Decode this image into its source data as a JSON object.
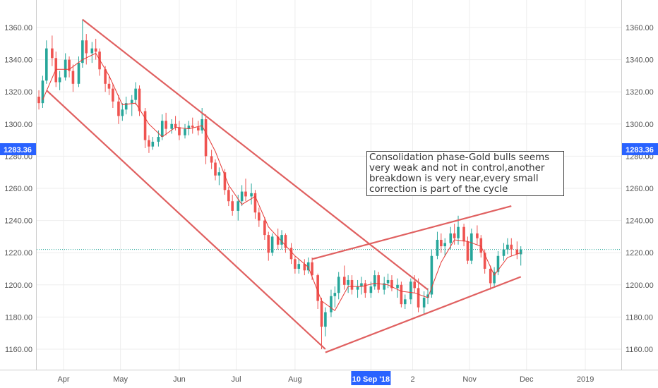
{
  "chart_data": {
    "type": "candlestick",
    "title": "",
    "xlabel": "",
    "ylabel": "",
    "ylim": [
      1150,
      1372
    ],
    "y_ticks": [
      "1160.00",
      "1180.00",
      "1200.00",
      "1220.00",
      "1240.00",
      "1260.00",
      "1280.00",
      "1300.00",
      "1320.00",
      "1340.00",
      "1360.00"
    ],
    "x_ticks": [
      "Apr",
      "May",
      "Jun",
      "Jul",
      "Aug",
      "10 Sep '18",
      "2",
      "Nov",
      "Dec",
      "2019"
    ],
    "highlighted_x_label": "10 Sep '18",
    "current_price_label": "1283.36",
    "dotted_level": 1222,
    "annotation": {
      "lines": [
        "Consolidation phase-Gold bulls seems",
        "very weak and not in control,another",
        "breakdown is very near,every small",
        "correction is part of the cycle"
      ]
    },
    "candle_series": [
      {
        "x": "2018-03-19",
        "open": 1317,
        "high": 1321,
        "low": 1309,
        "close": 1313
      },
      {
        "x": "2018-03-21",
        "open": 1313,
        "high": 1330,
        "low": 1310,
        "close": 1327
      },
      {
        "x": "2018-03-23",
        "open": 1327,
        "high": 1352,
        "low": 1325,
        "close": 1347
      },
      {
        "x": "2018-03-26",
        "open": 1347,
        "high": 1355,
        "low": 1336,
        "close": 1341
      },
      {
        "x": "2018-03-28",
        "open": 1341,
        "high": 1345,
        "low": 1323,
        "close": 1326
      },
      {
        "x": "2018-03-30",
        "open": 1326,
        "high": 1333,
        "low": 1321,
        "close": 1329
      },
      {
        "x": "2018-04-02",
        "open": 1329,
        "high": 1344,
        "low": 1327,
        "close": 1340
      },
      {
        "x": "2018-04-04",
        "open": 1340,
        "high": 1342,
        "low": 1329,
        "close": 1333
      },
      {
        "x": "2018-04-06",
        "open": 1333,
        "high": 1337,
        "low": 1320,
        "close": 1325
      },
      {
        "x": "2018-04-09",
        "open": 1325,
        "high": 1342,
        "low": 1323,
        "close": 1338
      },
      {
        "x": "2018-04-11",
        "open": 1338,
        "high": 1365,
        "low": 1335,
        "close": 1352
      },
      {
        "x": "2018-04-13",
        "open": 1352,
        "high": 1356,
        "low": 1337,
        "close": 1344
      },
      {
        "x": "2018-04-16",
        "open": 1344,
        "high": 1351,
        "low": 1338,
        "close": 1347
      },
      {
        "x": "2018-04-18",
        "open": 1347,
        "high": 1353,
        "low": 1340,
        "close": 1345
      },
      {
        "x": "2018-04-20",
        "open": 1345,
        "high": 1347,
        "low": 1330,
        "close": 1334
      },
      {
        "x": "2018-04-23",
        "open": 1334,
        "high": 1336,
        "low": 1320,
        "close": 1325
      },
      {
        "x": "2018-04-25",
        "open": 1325,
        "high": 1330,
        "low": 1318,
        "close": 1322
      },
      {
        "x": "2018-04-27",
        "open": 1322,
        "high": 1325,
        "low": 1310,
        "close": 1314
      },
      {
        "x": "2018-04-30",
        "open": 1314,
        "high": 1318,
        "low": 1300,
        "close": 1305
      },
      {
        "x": "2018-05-02",
        "open": 1305,
        "high": 1313,
        "low": 1302,
        "close": 1309
      },
      {
        "x": "2018-05-04",
        "open": 1309,
        "high": 1317,
        "low": 1306,
        "close": 1313
      },
      {
        "x": "2018-05-07",
        "open": 1313,
        "high": 1318,
        "low": 1305,
        "close": 1315
      },
      {
        "x": "2018-05-09",
        "open": 1315,
        "high": 1326,
        "low": 1312,
        "close": 1322
      },
      {
        "x": "2018-05-11",
        "open": 1322,
        "high": 1324,
        "low": 1305,
        "close": 1308
      },
      {
        "x": "2018-05-14",
        "open": 1308,
        "high": 1310,
        "low": 1285,
        "close": 1290
      },
      {
        "x": "2018-05-16",
        "open": 1290,
        "high": 1293,
        "low": 1282,
        "close": 1286
      },
      {
        "x": "2018-05-18",
        "open": 1286,
        "high": 1292,
        "low": 1284,
        "close": 1289
      },
      {
        "x": "2018-05-21",
        "open": 1289,
        "high": 1296,
        "low": 1286,
        "close": 1292
      },
      {
        "x": "2018-05-23",
        "open": 1292,
        "high": 1306,
        "low": 1290,
        "close": 1302
      },
      {
        "x": "2018-05-25",
        "open": 1302,
        "high": 1307,
        "low": 1293,
        "close": 1297
      },
      {
        "x": "2018-05-28",
        "open": 1297,
        "high": 1303,
        "low": 1294,
        "close": 1300
      },
      {
        "x": "2018-05-30",
        "open": 1300,
        "high": 1305,
        "low": 1296,
        "close": 1298
      },
      {
        "x": "2018-06-01",
        "open": 1298,
        "high": 1302,
        "low": 1290,
        "close": 1293
      },
      {
        "x": "2018-06-04",
        "open": 1293,
        "high": 1300,
        "low": 1291,
        "close": 1297
      },
      {
        "x": "2018-06-06",
        "open": 1297,
        "high": 1302,
        "low": 1293,
        "close": 1299
      },
      {
        "x": "2018-06-08",
        "open": 1299,
        "high": 1304,
        "low": 1294,
        "close": 1298
      },
      {
        "x": "2018-06-11",
        "open": 1298,
        "high": 1302,
        "low": 1293,
        "close": 1296
      },
      {
        "x": "2018-06-13",
        "open": 1296,
        "high": 1310,
        "low": 1294,
        "close": 1303
      },
      {
        "x": "2018-06-15",
        "open": 1303,
        "high": 1306,
        "low": 1275,
        "close": 1280
      },
      {
        "x": "2018-06-18",
        "open": 1280,
        "high": 1284,
        "low": 1272,
        "close": 1276
      },
      {
        "x": "2018-06-20",
        "open": 1276,
        "high": 1278,
        "low": 1265,
        "close": 1268
      },
      {
        "x": "2018-06-22",
        "open": 1268,
        "high": 1273,
        "low": 1262,
        "close": 1270
      },
      {
        "x": "2018-06-25",
        "open": 1270,
        "high": 1272,
        "low": 1256,
        "close": 1259
      },
      {
        "x": "2018-06-27",
        "open": 1259,
        "high": 1261,
        "low": 1249,
        "close": 1252
      },
      {
        "x": "2018-06-29",
        "open": 1252,
        "high": 1256,
        "low": 1243,
        "close": 1246
      },
      {
        "x": "2018-07-02",
        "open": 1246,
        "high": 1256,
        "low": 1240,
        "close": 1252
      },
      {
        "x": "2018-07-04",
        "open": 1252,
        "high": 1262,
        "low": 1249,
        "close": 1258
      },
      {
        "x": "2018-07-06",
        "open": 1258,
        "high": 1266,
        "low": 1252,
        "close": 1255
      },
      {
        "x": "2018-07-09",
        "open": 1255,
        "high": 1263,
        "low": 1250,
        "close": 1257
      },
      {
        "x": "2018-07-11",
        "open": 1257,
        "high": 1259,
        "low": 1241,
        "close": 1245
      },
      {
        "x": "2018-07-13",
        "open": 1245,
        "high": 1248,
        "low": 1236,
        "close": 1240
      },
      {
        "x": "2018-07-16",
        "open": 1240,
        "high": 1242,
        "low": 1228,
        "close": 1231
      },
      {
        "x": "2018-07-18",
        "open": 1231,
        "high": 1233,
        "low": 1215,
        "close": 1220
      },
      {
        "x": "2018-07-20",
        "open": 1220,
        "high": 1232,
        "low": 1218,
        "close": 1230
      },
      {
        "x": "2018-07-23",
        "open": 1230,
        "high": 1235,
        "low": 1222,
        "close": 1225
      },
      {
        "x": "2018-07-25",
        "open": 1225,
        "high": 1234,
        "low": 1222,
        "close": 1231
      },
      {
        "x": "2018-07-27",
        "open": 1231,
        "high": 1232,
        "low": 1220,
        "close": 1223
      },
      {
        "x": "2018-07-30",
        "open": 1223,
        "high": 1226,
        "low": 1213,
        "close": 1216
      },
      {
        "x": "2018-08-01",
        "open": 1216,
        "high": 1218,
        "low": 1207,
        "close": 1210
      },
      {
        "x": "2018-08-03",
        "open": 1210,
        "high": 1216,
        "low": 1207,
        "close": 1213
      },
      {
        "x": "2018-08-06",
        "open": 1213,
        "high": 1216,
        "low": 1206,
        "close": 1209
      },
      {
        "x": "2018-08-08",
        "open": 1209,
        "high": 1217,
        "low": 1207,
        "close": 1214
      },
      {
        "x": "2018-08-10",
        "open": 1214,
        "high": 1217,
        "low": 1203,
        "close": 1206
      },
      {
        "x": "2018-08-13",
        "open": 1206,
        "high": 1207,
        "low": 1185,
        "close": 1190
      },
      {
        "x": "2018-08-15",
        "open": 1190,
        "high": 1192,
        "low": 1160,
        "close": 1174
      },
      {
        "x": "2018-08-17",
        "open": 1174,
        "high": 1186,
        "low": 1168,
        "close": 1183
      },
      {
        "x": "2018-08-20",
        "open": 1183,
        "high": 1197,
        "low": 1180,
        "close": 1193
      },
      {
        "x": "2018-08-22",
        "open": 1193,
        "high": 1199,
        "low": 1186,
        "close": 1195
      },
      {
        "x": "2018-08-24",
        "open": 1195,
        "high": 1208,
        "low": 1191,
        "close": 1205
      },
      {
        "x": "2018-08-27",
        "open": 1205,
        "high": 1212,
        "low": 1197,
        "close": 1200
      },
      {
        "x": "2018-08-29",
        "open": 1200,
        "high": 1206,
        "low": 1195,
        "close": 1203
      },
      {
        "x": "2018-08-31",
        "open": 1203,
        "high": 1206,
        "low": 1194,
        "close": 1197
      },
      {
        "x": "2018-09-03",
        "open": 1197,
        "high": 1203,
        "low": 1192,
        "close": 1199
      },
      {
        "x": "2018-09-05",
        "open": 1199,
        "high": 1205,
        "low": 1194,
        "close": 1201
      },
      {
        "x": "2018-09-07",
        "open": 1201,
        "high": 1203,
        "low": 1192,
        "close": 1195
      },
      {
        "x": "2018-09-10",
        "open": 1195,
        "high": 1202,
        "low": 1192,
        "close": 1199
      },
      {
        "x": "2018-09-12",
        "open": 1199,
        "high": 1209,
        "low": 1197,
        "close": 1206
      },
      {
        "x": "2018-09-14",
        "open": 1206,
        "high": 1208,
        "low": 1195,
        "close": 1197
      },
      {
        "x": "2018-09-17",
        "open": 1197,
        "high": 1205,
        "low": 1194,
        "close": 1201
      },
      {
        "x": "2018-09-19",
        "open": 1201,
        "high": 1207,
        "low": 1198,
        "close": 1203
      },
      {
        "x": "2018-09-21",
        "open": 1203,
        "high": 1206,
        "low": 1196,
        "close": 1198
      },
      {
        "x": "2018-09-24",
        "open": 1198,
        "high": 1204,
        "low": 1192,
        "close": 1200
      },
      {
        "x": "2018-09-26",
        "open": 1200,
        "high": 1202,
        "low": 1186,
        "close": 1188
      },
      {
        "x": "2018-09-28",
        "open": 1188,
        "high": 1194,
        "low": 1185,
        "close": 1191
      },
      {
        "x": "2018-10-01",
        "open": 1191,
        "high": 1204,
        "low": 1188,
        "close": 1202
      },
      {
        "x": "2018-10-03",
        "open": 1202,
        "high": 1206,
        "low": 1195,
        "close": 1198
      },
      {
        "x": "2018-10-05",
        "open": 1198,
        "high": 1204,
        "low": 1183,
        "close": 1186
      },
      {
        "x": "2018-10-08",
        "open": 1186,
        "high": 1196,
        "low": 1182,
        "close": 1192
      },
      {
        "x": "2018-10-10",
        "open": 1192,
        "high": 1198,
        "low": 1188,
        "close": 1194
      },
      {
        "x": "2018-10-12",
        "open": 1194,
        "high": 1222,
        "low": 1192,
        "close": 1218
      },
      {
        "x": "2018-10-15",
        "open": 1218,
        "high": 1233,
        "low": 1216,
        "close": 1228
      },
      {
        "x": "2018-10-17",
        "open": 1228,
        "high": 1232,
        "low": 1220,
        "close": 1224
      },
      {
        "x": "2018-10-19",
        "open": 1224,
        "high": 1229,
        "low": 1218,
        "close": 1226
      },
      {
        "x": "2018-10-22",
        "open": 1226,
        "high": 1236,
        "low": 1222,
        "close": 1232
      },
      {
        "x": "2018-10-24",
        "open": 1232,
        "high": 1238,
        "low": 1225,
        "close": 1229
      },
      {
        "x": "2018-10-26",
        "open": 1229,
        "high": 1243,
        "low": 1225,
        "close": 1236
      },
      {
        "x": "2018-10-29",
        "open": 1236,
        "high": 1238,
        "low": 1224,
        "close": 1227
      },
      {
        "x": "2018-10-31",
        "open": 1227,
        "high": 1230,
        "low": 1213,
        "close": 1215
      },
      {
        "x": "2018-11-02",
        "open": 1215,
        "high": 1235,
        "low": 1213,
        "close": 1232
      },
      {
        "x": "2018-11-05",
        "open": 1232,
        "high": 1237,
        "low": 1225,
        "close": 1229
      },
      {
        "x": "2018-11-07",
        "open": 1229,
        "high": 1231,
        "low": 1217,
        "close": 1220
      },
      {
        "x": "2018-11-09",
        "open": 1220,
        "high": 1222,
        "low": 1207,
        "close": 1210
      },
      {
        "x": "2018-11-12",
        "open": 1210,
        "high": 1212,
        "low": 1197,
        "close": 1201
      },
      {
        "x": "2018-11-14",
        "open": 1201,
        "high": 1211,
        "low": 1199,
        "close": 1208
      },
      {
        "x": "2018-11-16",
        "open": 1208,
        "high": 1221,
        "low": 1206,
        "close": 1218
      },
      {
        "x": "2018-11-19",
        "open": 1218,
        "high": 1226,
        "low": 1215,
        "close": 1222
      },
      {
        "x": "2018-11-21",
        "open": 1222,
        "high": 1229,
        "low": 1219,
        "close": 1225
      },
      {
        "x": "2018-11-23",
        "open": 1225,
        "high": 1229,
        "low": 1218,
        "close": 1222
      },
      {
        "x": "2018-11-26",
        "open": 1222,
        "high": 1227,
        "low": 1216,
        "close": 1219
      },
      {
        "x": "2018-11-28",
        "open": 1219,
        "high": 1224,
        "low": 1212,
        "close": 1222
      }
    ],
    "ma_series": [
      {
        "x": "2018-03-21",
        "y": 1315
      },
      {
        "x": "2018-03-28",
        "y": 1334
      },
      {
        "x": "2018-04-04",
        "y": 1334
      },
      {
        "x": "2018-04-11",
        "y": 1340
      },
      {
        "x": "2018-04-18",
        "y": 1344
      },
      {
        "x": "2018-04-25",
        "y": 1330
      },
      {
        "x": "2018-05-02",
        "y": 1312
      },
      {
        "x": "2018-05-09",
        "y": 1313
      },
      {
        "x": "2018-05-16",
        "y": 1300
      },
      {
        "x": "2018-05-23",
        "y": 1292
      },
      {
        "x": "2018-05-30",
        "y": 1298
      },
      {
        "x": "2018-06-06",
        "y": 1297
      },
      {
        "x": "2018-06-13",
        "y": 1299
      },
      {
        "x": "2018-06-20",
        "y": 1283
      },
      {
        "x": "2018-06-27",
        "y": 1262
      },
      {
        "x": "2018-07-04",
        "y": 1250
      },
      {
        "x": "2018-07-11",
        "y": 1255
      },
      {
        "x": "2018-07-18",
        "y": 1236
      },
      {
        "x": "2018-07-25",
        "y": 1227
      },
      {
        "x": "2018-08-01",
        "y": 1218
      },
      {
        "x": "2018-08-08",
        "y": 1211
      },
      {
        "x": "2018-08-15",
        "y": 1190
      },
      {
        "x": "2018-08-22",
        "y": 1184
      },
      {
        "x": "2018-08-29",
        "y": 1199
      },
      {
        "x": "2018-09-05",
        "y": 1199
      },
      {
        "x": "2018-09-12",
        "y": 1201
      },
      {
        "x": "2018-09-19",
        "y": 1200
      },
      {
        "x": "2018-09-26",
        "y": 1196
      },
      {
        "x": "2018-10-03",
        "y": 1195
      },
      {
        "x": "2018-10-10",
        "y": 1192
      },
      {
        "x": "2018-10-17",
        "y": 1214
      },
      {
        "x": "2018-10-24",
        "y": 1228
      },
      {
        "x": "2018-10-31",
        "y": 1227
      },
      {
        "x": "2018-11-07",
        "y": 1224
      },
      {
        "x": "2018-11-14",
        "y": 1206
      },
      {
        "x": "2018-11-21",
        "y": 1217
      },
      {
        "x": "2018-11-28",
        "y": 1220
      }
    ],
    "trendlines": [
      {
        "from": {
          "x": "2018-04-11",
          "y": 1365
        },
        "to": {
          "x": "2018-10-10",
          "y": 1197
        }
      },
      {
        "from": {
          "x": "2018-03-23",
          "y": 1321
        },
        "to": {
          "x": "2018-08-17",
          "y": 1160
        }
      },
      {
        "from": {
          "x": "2018-08-10",
          "y": 1216
        },
        "to": {
          "x": "2018-11-23",
          "y": 1249
        }
      },
      {
        "from": {
          "x": "2018-08-17",
          "y": 1158
        },
        "to": {
          "x": "2018-11-28",
          "y": 1205
        }
      }
    ]
  }
}
